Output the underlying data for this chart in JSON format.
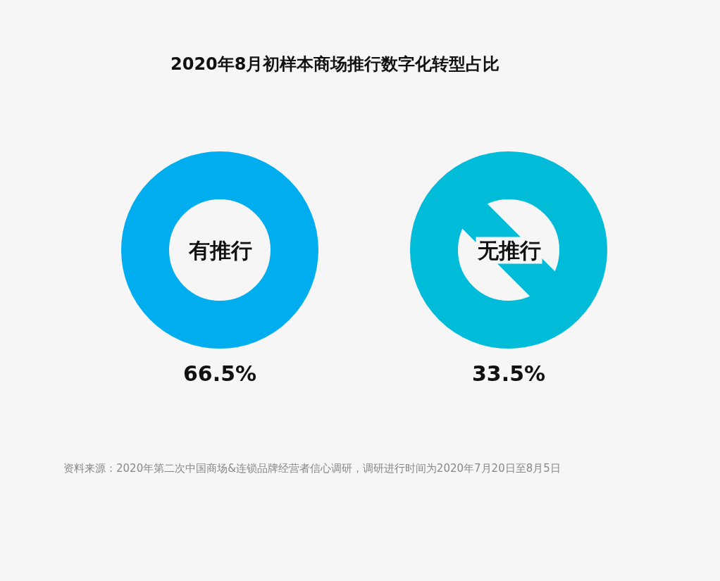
{
  "chart_data": {
    "type": "other",
    "title": "2020年8月初样本商场推行数字化转型占比",
    "categories": [
      "有推行",
      "无推行"
    ],
    "values": [
      66.5,
      33.5
    ],
    "value_labels": [
      "66.5%",
      "33.5%"
    ],
    "colors": [
      "#00aeef",
      "#00bcd8"
    ],
    "annotations": [
      "资料来源：2020年第二次中国商场&连锁品牌经营者信心调研，调研进行时间为2020年7月20日至8月5日"
    ]
  }
}
